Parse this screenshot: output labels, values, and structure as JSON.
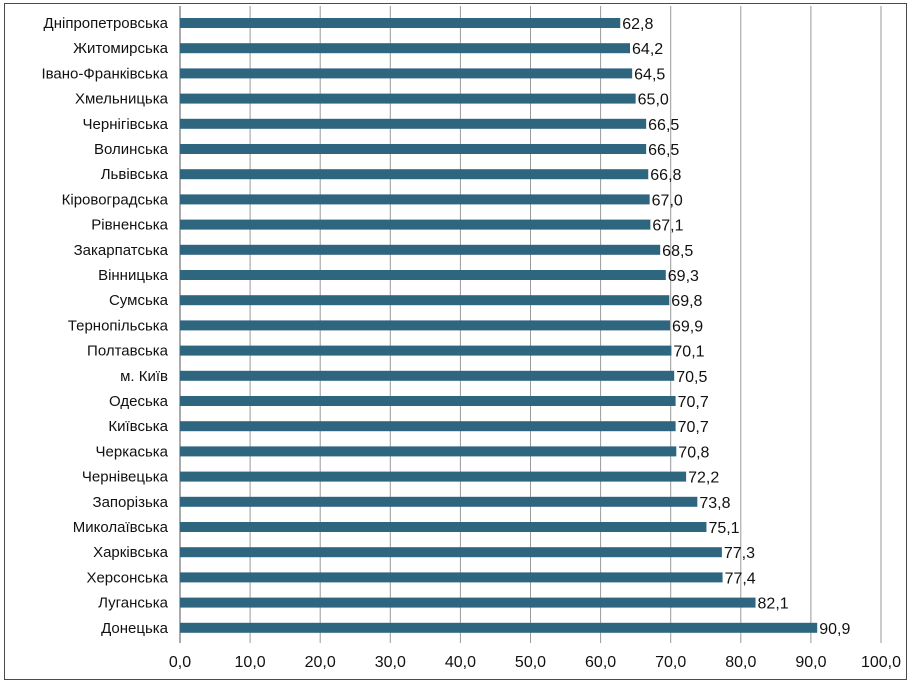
{
  "chart_data": {
    "type": "bar",
    "orientation": "horizontal",
    "title": "",
    "xlabel": "",
    "ylabel": "",
    "xlim": [
      0,
      100
    ],
    "ticks": [
      "0,0",
      "10,0",
      "20,0",
      "30,0",
      "40,0",
      "50,0",
      "60,0",
      "70,0",
      "80,0",
      "90,0",
      "100,0"
    ],
    "grid": "vertical",
    "bar_color": "#2e6680",
    "categories": [
      "Дніпропетровська",
      "Житомирська",
      "Івано-Франківська",
      "Хмельницька",
      "Чернігівська",
      "Волинська",
      "Львівська",
      "Кіровоградська",
      "Рівненська",
      "Закарпатська",
      "Вінницька",
      "Сумська",
      "Тернопільська",
      "Полтавська",
      "м. Київ",
      "Одеська",
      "Київська",
      "Черкаська",
      "Чернівецька",
      "Запорізька",
      "Миколаївська",
      "Харківська",
      "Херсонська",
      "Луганська",
      "Донецька"
    ],
    "values": [
      62.8,
      64.2,
      64.5,
      65.0,
      66.5,
      66.5,
      66.8,
      67.0,
      67.1,
      68.5,
      69.3,
      69.8,
      69.9,
      70.1,
      70.5,
      70.7,
      70.7,
      70.8,
      72.2,
      73.8,
      75.1,
      77.3,
      77.4,
      82.1,
      90.9
    ],
    "value_labels": [
      "62,8",
      "64,2",
      "64,5",
      "65,0",
      "66,5",
      "66,5",
      "66,8",
      "67,0",
      "67,1",
      "68,5",
      "69,3",
      "69,8",
      "69,9",
      "70,1",
      "70,5",
      "70,7",
      "70,7",
      "70,8",
      "72,2",
      "73,8",
      "75,1",
      "77,3",
      "77,4",
      "82,1",
      "90,9"
    ]
  }
}
